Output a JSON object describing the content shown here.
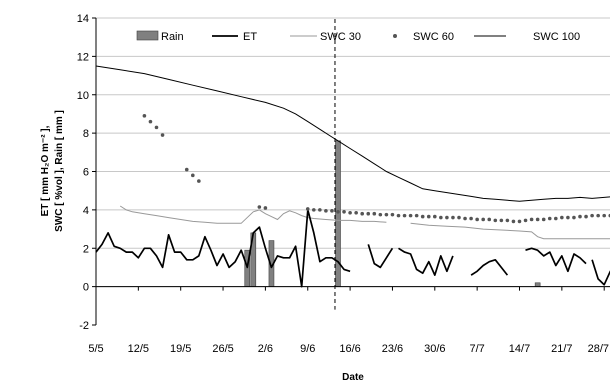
{
  "chart_data": {
    "type": "line",
    "xlabel": "Date",
    "ylabel_lines": [
      "ET [ mm H₂O m⁻² ],",
      "SWC [ %vol ], Rain [ mm ]"
    ],
    "ylim": [
      -2,
      14
    ],
    "yticks": [
      -2,
      0,
      2,
      4,
      6,
      8,
      10,
      12,
      14
    ],
    "ytick_labels": [
      "-2",
      "0",
      "2",
      "4",
      "6",
      "8",
      "10",
      "12",
      "14"
    ],
    "x_range_days": [
      0,
      86
    ],
    "xticks": [
      0,
      7,
      14,
      21,
      28,
      35,
      42,
      49,
      56,
      63,
      70,
      77,
      84
    ],
    "xtick_labels": [
      "5/5",
      "12/5",
      "19/5",
      "26/5",
      "2/6",
      "9/6",
      "16/6",
      "23/6",
      "30/6",
      "7/7",
      "14/7",
      "21/7",
      "28/7"
    ],
    "vline_day": 39.5,
    "legend": {
      "placement": "top",
      "entries": [
        "Rain",
        "ET",
        "SWC 30",
        "SWC 60",
        "SWC 100"
      ]
    },
    "colors": {
      "rain_fill": "#808080",
      "rain_stroke": "#404040",
      "et": "#000000",
      "swc30": "#999999",
      "swc60": "#555555",
      "swc100": "#000000"
    },
    "series": [
      {
        "name": "Rain",
        "type": "bar",
        "points": [
          [
            25,
            1.9
          ],
          [
            26,
            2.8
          ],
          [
            29,
            2.4
          ],
          [
            40,
            7.6
          ],
          [
            73,
            0.2
          ]
        ]
      },
      {
        "name": "ET",
        "type": "line",
        "segments": [
          [
            [
              0,
              1.8
            ],
            [
              1,
              2.2
            ],
            [
              2,
              2.8
            ],
            [
              3,
              2.1
            ],
            [
              4,
              2.0
            ],
            [
              5,
              1.8
            ],
            [
              6,
              1.8
            ],
            [
              7,
              1.5
            ],
            [
              8,
              2.0
            ],
            [
              9,
              2.0
            ],
            [
              10,
              1.6
            ],
            [
              11,
              1.0
            ],
            [
              12,
              2.7
            ],
            [
              13,
              1.8
            ],
            [
              14,
              1.8
            ],
            [
              15,
              1.4
            ],
            [
              16,
              1.4
            ],
            [
              17,
              1.6
            ],
            [
              18,
              2.6
            ],
            [
              19,
              1.9
            ],
            [
              20,
              1.1
            ],
            [
              21,
              1.7
            ],
            [
              22,
              1.0
            ],
            [
              23,
              1.3
            ],
            [
              24,
              1.9
            ],
            [
              25,
              1.0
            ],
            [
              26,
              2.8
            ],
            [
              27,
              3.1
            ],
            [
              28,
              2.0
            ],
            [
              29,
              1.0
            ],
            [
              30,
              1.6
            ],
            [
              31,
              1.5
            ],
            [
              32,
              1.5
            ],
            [
              33,
              2.1
            ],
            [
              34,
              0.0
            ],
            [
              35,
              4.0
            ],
            [
              36,
              2.8
            ],
            [
              37,
              1.3
            ],
            [
              38,
              1.5
            ],
            [
              39,
              1.5
            ],
            [
              40,
              1.3
            ],
            [
              41,
              0.9
            ],
            [
              42,
              0.8
            ]
          ],
          [
            [
              45,
              2.2
            ],
            [
              46,
              1.2
            ],
            [
              47,
              1.0
            ],
            [
              48,
              1.5
            ],
            [
              49,
              2.0
            ]
          ],
          [
            [
              50,
              2.0
            ],
            [
              51,
              1.8
            ],
            [
              52,
              1.7
            ],
            [
              53,
              0.9
            ],
            [
              54,
              0.7
            ],
            [
              55,
              1.3
            ],
            [
              56,
              0.6
            ],
            [
              57,
              1.6
            ],
            [
              58,
              0.8
            ],
            [
              59,
              1.6
            ]
          ],
          [
            [
              62,
              0.6
            ],
            [
              63,
              0.8
            ],
            [
              64,
              1.1
            ],
            [
              65,
              1.3
            ],
            [
              66,
              1.4
            ],
            [
              67,
              1.0
            ],
            [
              68,
              0.6
            ]
          ],
          [
            [
              71,
              1.9
            ],
            [
              72,
              2.0
            ],
            [
              73,
              1.9
            ],
            [
              74,
              1.6
            ],
            [
              75,
              1.8
            ],
            [
              76,
              1.1
            ],
            [
              77,
              1.6
            ],
            [
              78,
              0.8
            ],
            [
              79,
              1.7
            ],
            [
              80,
              1.5
            ],
            [
              81,
              1.2
            ]
          ],
          [
            [
              82,
              1.4
            ],
            [
              83,
              0.4
            ],
            [
              84,
              0.1
            ],
            [
              85,
              0.8
            ],
            [
              86,
              0.4
            ],
            [
              87,
              0.6
            ],
            [
              88,
              0.0
            ]
          ]
        ]
      },
      {
        "name": "SWC 30",
        "type": "line",
        "segments": [
          [
            [
              4,
              4.2
            ],
            [
              5,
              4.0
            ],
            [
              6,
              3.9
            ],
            [
              8,
              3.8
            ],
            [
              10,
              3.7
            ],
            [
              12,
              3.6
            ],
            [
              14,
              3.5
            ],
            [
              16,
              3.4
            ],
            [
              18,
              3.35
            ],
            [
              20,
              3.3
            ],
            [
              22,
              3.3
            ],
            [
              24,
              3.3
            ],
            [
              26,
              3.9
            ],
            [
              27,
              4.0
            ],
            [
              28,
              3.8
            ],
            [
              29,
              3.65
            ],
            [
              30,
              3.5
            ],
            [
              31,
              3.8
            ],
            [
              32,
              3.95
            ],
            [
              33,
              3.85
            ],
            [
              34,
              3.7
            ],
            [
              35,
              3.6
            ],
            [
              36,
              3.55
            ],
            [
              38,
              3.5
            ],
            [
              40,
              3.45
            ],
            [
              42,
              3.45
            ],
            [
              44,
              3.4
            ],
            [
              46,
              3.4
            ],
            [
              48,
              3.35
            ]
          ],
          [
            [
              52,
              3.3
            ],
            [
              55,
              3.2
            ],
            [
              58,
              3.15
            ],
            [
              61,
              3.1
            ],
            [
              64,
              3.0
            ],
            [
              67,
              2.95
            ],
            [
              70,
              2.9
            ],
            [
              72,
              2.85
            ],
            [
              73,
              2.6
            ],
            [
              74,
              2.5
            ],
            [
              77,
              2.5
            ],
            [
              80,
              2.5
            ],
            [
              83,
              2.5
            ],
            [
              86,
              2.5
            ]
          ]
        ]
      },
      {
        "name": "SWC 60",
        "type": "scatter",
        "points": [
          [
            8,
            8.9
          ],
          [
            9,
            8.6
          ],
          [
            10,
            8.3
          ],
          [
            11,
            7.9
          ],
          [
            15,
            6.1
          ],
          [
            16,
            5.8
          ],
          [
            17,
            5.5
          ],
          [
            27,
            4.15
          ],
          [
            28,
            4.1
          ],
          [
            35,
            4.05
          ],
          [
            36,
            4.0
          ],
          [
            37,
            4.0
          ],
          [
            38,
            3.95
          ],
          [
            39,
            3.95
          ],
          [
            40,
            3.9
          ],
          [
            41,
            3.9
          ],
          [
            42,
            3.85
          ],
          [
            43,
            3.85
          ],
          [
            44,
            3.8
          ],
          [
            45,
            3.8
          ],
          [
            46,
            3.8
          ],
          [
            47,
            3.75
          ],
          [
            48,
            3.75
          ],
          [
            49,
            3.75
          ],
          [
            50,
            3.7
          ],
          [
            51,
            3.7
          ],
          [
            52,
            3.7
          ],
          [
            53,
            3.7
          ],
          [
            54,
            3.65
          ],
          [
            55,
            3.65
          ],
          [
            56,
            3.65
          ],
          [
            57,
            3.6
          ],
          [
            58,
            3.6
          ],
          [
            59,
            3.6
          ],
          [
            60,
            3.6
          ],
          [
            61,
            3.55
          ],
          [
            62,
            3.55
          ],
          [
            63,
            3.5
          ],
          [
            64,
            3.5
          ],
          [
            65,
            3.5
          ],
          [
            66,
            3.45
          ],
          [
            67,
            3.45
          ],
          [
            68,
            3.45
          ],
          [
            69,
            3.4
          ],
          [
            70,
            3.4
          ],
          [
            71,
            3.45
          ],
          [
            72,
            3.5
          ],
          [
            73,
            3.5
          ],
          [
            74,
            3.5
          ],
          [
            75,
            3.55
          ],
          [
            76,
            3.55
          ],
          [
            77,
            3.6
          ],
          [
            78,
            3.6
          ],
          [
            79,
            3.6
          ],
          [
            80,
            3.65
          ],
          [
            81,
            3.65
          ],
          [
            82,
            3.7
          ],
          [
            83,
            3.7
          ],
          [
            84,
            3.7
          ],
          [
            85,
            3.7
          ],
          [
            86,
            3.7
          ]
        ]
      },
      {
        "name": "SWC 100",
        "type": "line",
        "points": [
          [
            0,
            11.5
          ],
          [
            4,
            11.3
          ],
          [
            8,
            11.1
          ],
          [
            12,
            10.8
          ],
          [
            16,
            10.5
          ],
          [
            20,
            10.2
          ],
          [
            24,
            9.9
          ],
          [
            28,
            9.6
          ],
          [
            31,
            9.3
          ],
          [
            33,
            9.0
          ],
          [
            35,
            8.6
          ],
          [
            37,
            8.2
          ],
          [
            39,
            7.8
          ],
          [
            40,
            7.6
          ],
          [
            42,
            7.2
          ],
          [
            44,
            6.8
          ],
          [
            46,
            6.4
          ],
          [
            48,
            6.0
          ],
          [
            50,
            5.7
          ],
          [
            52,
            5.4
          ],
          [
            54,
            5.1
          ],
          [
            56,
            5.0
          ],
          [
            58,
            4.9
          ],
          [
            60,
            4.8
          ],
          [
            62,
            4.7
          ],
          [
            64,
            4.6
          ],
          [
            66,
            4.55
          ],
          [
            68,
            4.5
          ],
          [
            70,
            4.45
          ],
          [
            72,
            4.5
          ],
          [
            74,
            4.55
          ],
          [
            76,
            4.6
          ],
          [
            78,
            4.6
          ],
          [
            80,
            4.65
          ],
          [
            82,
            4.6
          ],
          [
            84,
            4.65
          ],
          [
            86,
            4.7
          ]
        ]
      }
    ]
  }
}
